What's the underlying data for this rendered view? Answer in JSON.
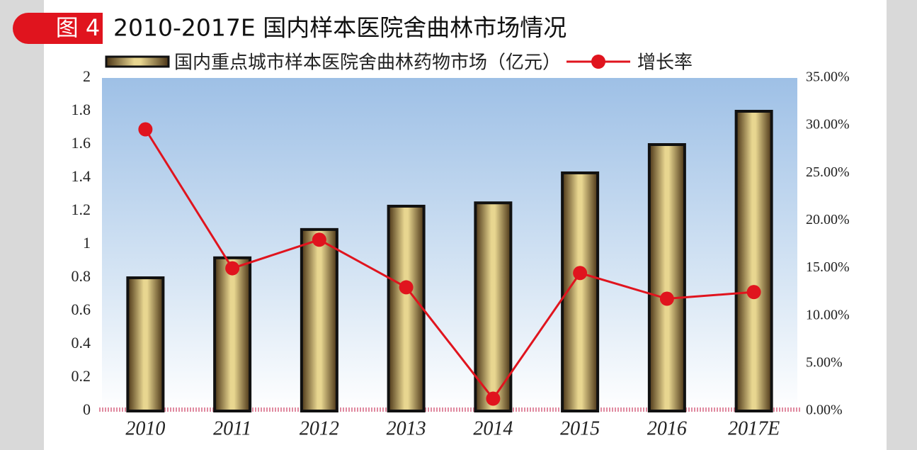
{
  "chart_data": {
    "type": "bar",
    "badge": "图 4",
    "title": "2010-2017E 国内样本医院舍曲林市场情况",
    "categories": [
      "2010",
      "2011",
      "2012",
      "2013",
      "2014",
      "2015",
      "2016",
      "2017E"
    ],
    "series": [
      {
        "name": "国内重点城市样本医院舍曲林药物市场（亿元）",
        "type": "bar",
        "color": "#e8d690",
        "values": [
          0.8,
          0.92,
          1.09,
          1.23,
          1.25,
          1.43,
          1.6,
          1.8
        ]
      },
      {
        "name": "增长率",
        "type": "line",
        "axis": "y2",
        "color": "#e0141e",
        "values": [
          29.6,
          15.0,
          18.0,
          13.0,
          1.3,
          14.5,
          11.8,
          12.5
        ]
      }
    ],
    "ylim": [
      0,
      2
    ],
    "yticks": [
      0,
      0.2,
      0.4,
      0.6,
      0.8,
      1,
      1.2,
      1.4,
      1.6,
      1.8,
      2
    ],
    "y2lim": [
      0,
      35
    ],
    "y2ticks": [
      {
        "value": 0,
        "label": "0.00%"
      },
      {
        "value": 5,
        "label": "5.00%"
      },
      {
        "value": 10,
        "label": "10.00%"
      },
      {
        "value": 15,
        "label": "15.00%"
      },
      {
        "value": 20,
        "label": "20.00%"
      },
      {
        "value": 25,
        "label": "25.00%"
      },
      {
        "value": 30,
        "label": "30.00%"
      },
      {
        "value": 35,
        "label": "35.00%"
      }
    ]
  }
}
